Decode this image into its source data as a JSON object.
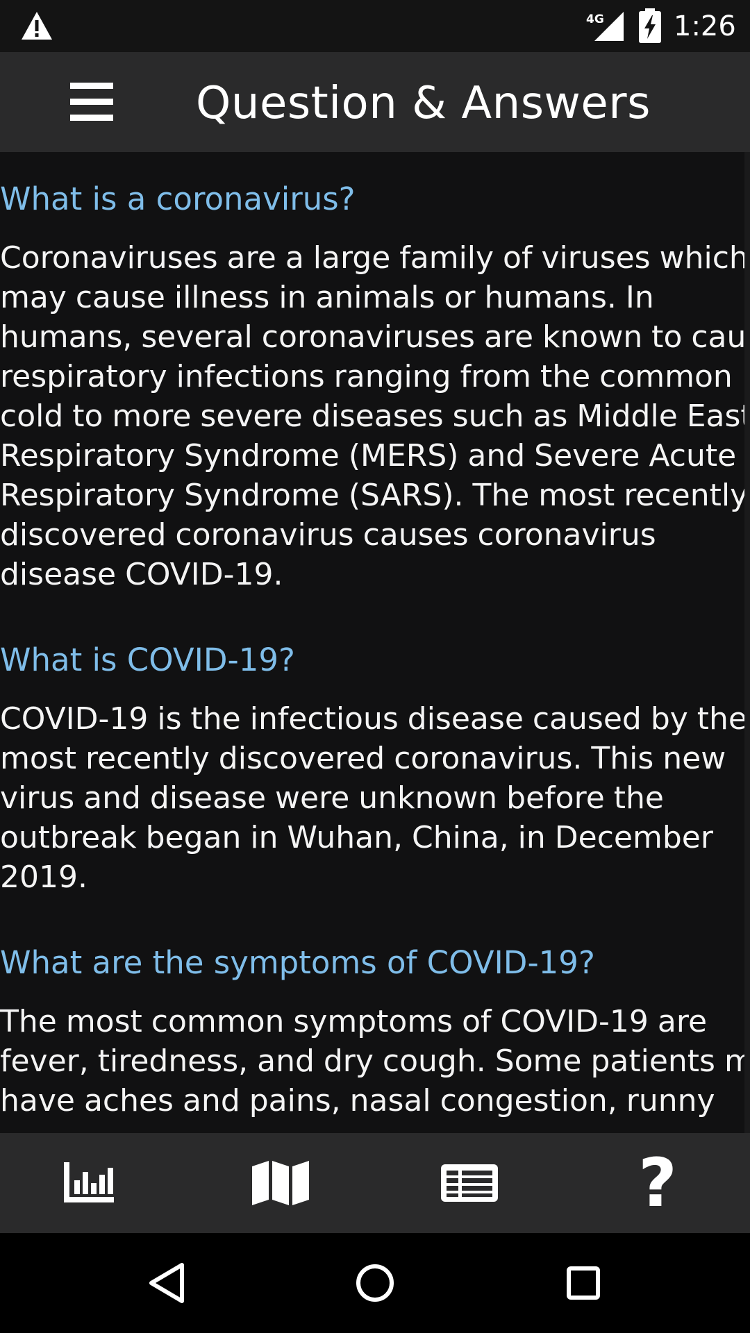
{
  "status_bar": {
    "time": "1:26",
    "network_label": "4G",
    "icons": [
      "warning-icon",
      "signal-icon",
      "battery-charging-icon"
    ]
  },
  "app_bar": {
    "title": "Question & Answers",
    "menu_icon": "hamburger-menu-icon"
  },
  "qa": [
    {
      "question": "What is a coronavirus?",
      "answer_lines": [
        "Coronaviruses are a large family of viruses which",
        "may cause illness in animals or humans.  In",
        "humans, several coronaviruses are known to cause",
        "respiratory infections ranging from the common",
        "cold to more severe diseases such as Middle East",
        "Respiratory Syndrome (MERS) and Severe Acute",
        "Respiratory Syndrome (SARS). The most recently",
        "discovered coronavirus causes coronavirus",
        "disease COVID-19."
      ]
    },
    {
      "question": "What is COVID-19?",
      "answer_lines": [
        "COVID-19 is the infectious disease caused by the",
        "most recently discovered coronavirus. This new",
        "virus and disease were unknown before the",
        "outbreak began in Wuhan, China, in December",
        "2019."
      ]
    },
    {
      "question": "What are the symptoms of COVID-19?",
      "answer_lines": [
        "The most common symptoms of COVID-19 are",
        "fever, tiredness, and dry cough. Some patients may",
        "have aches and pains, nasal congestion, runny"
      ]
    }
  ],
  "bottom_nav": {
    "items": [
      {
        "icon": "bar-chart-icon"
      },
      {
        "icon": "map-icon"
      },
      {
        "icon": "news-icon"
      },
      {
        "icon": "help-icon",
        "glyph": "?"
      }
    ]
  },
  "system_nav": {
    "icons": [
      "back-icon",
      "home-icon",
      "recents-icon"
    ]
  },
  "colors": {
    "background": "#111112",
    "bar": "#2a2a2b",
    "question": "#7fbde9",
    "answer": "#f4f4f4"
  }
}
